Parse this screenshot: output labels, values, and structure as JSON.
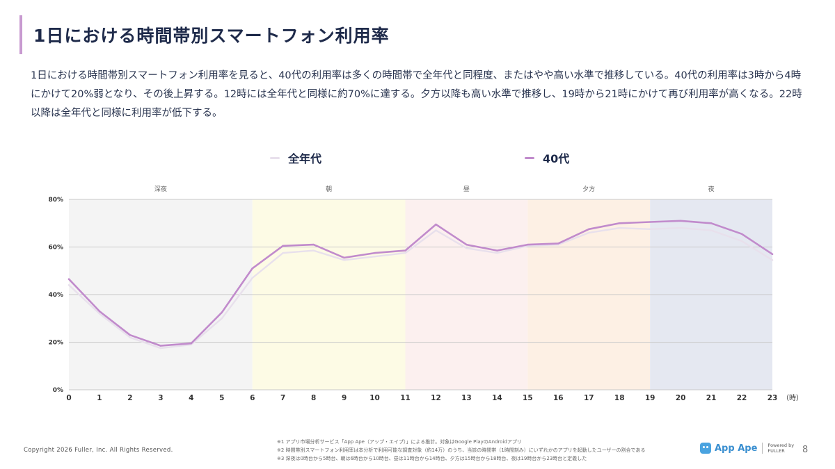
{
  "header": {
    "title": "1日における時間帯別スマートフォン利用率",
    "description": "1日における時間帯別スマートフォン利用率を見ると、40代の利用率は多くの時間帯で全年代と同程度、またはやや高い水準で推移している。40代の利用率は3時から4時にかけて20%弱となり、その後上昇する。12時には全年代と同様に約70%に達する。夕方以降も高い水準で推移し、19時から21時にかけて再び利用率が高くなる。22時以降は全年代と同様に利用率が低下する。"
  },
  "chart_data": {
    "type": "line",
    "x": [
      0,
      1,
      2,
      3,
      4,
      5,
      6,
      7,
      8,
      9,
      10,
      11,
      12,
      13,
      14,
      15,
      16,
      17,
      18,
      19,
      20,
      21,
      22,
      23
    ],
    "x_unit_label": "（時）",
    "ylim": [
      0,
      80
    ],
    "yticks": [
      "0%",
      "20%",
      "40%",
      "60%",
      "80%"
    ],
    "y_tick_values": [
      0,
      20,
      40,
      60,
      80
    ],
    "grid": true,
    "legend_position": "top-center",
    "series": [
      {
        "name": "全年代",
        "color": "#e8e0ec",
        "values": [
          44,
          32,
          22,
          17.5,
          19,
          30,
          47,
          57.5,
          58.5,
          54.5,
          56,
          57.5,
          67,
          59.5,
          57.5,
          60.5,
          61,
          66,
          68,
          67.5,
          68,
          67,
          62.5,
          54.5
        ]
      },
      {
        "name": "40代",
        "color": "#c18bcc",
        "values": [
          46.5,
          33,
          23,
          18.5,
          19.5,
          32.5,
          51,
          60.5,
          61,
          55.5,
          57.5,
          58.5,
          69.5,
          61,
          58.5,
          61,
          61.5,
          67.5,
          70,
          70.5,
          71,
          70,
          65.5,
          57
        ]
      }
    ],
    "bands": [
      {
        "label": "深夜",
        "from": 0,
        "to": 6,
        "color": "#f4f4f4"
      },
      {
        "label": "朝",
        "from": 6,
        "to": 11,
        "color": "#fdfbe5"
      },
      {
        "label": "昼",
        "from": 11,
        "to": 15,
        "color": "#fcf0ef"
      },
      {
        "label": "夕方",
        "from": 15,
        "to": 19,
        "color": "#fdf0e4"
      },
      {
        "label": "夜",
        "from": 19,
        "to": 23,
        "color": "#e5e8f1"
      }
    ]
  },
  "footer": {
    "copyright": "Copyright 2026 Fuller, Inc. All Rights Reserved.",
    "notes": [
      "※1 アプリ市場分析サービス「App Ape（アップ・エイプ）」による推計。対象はGoogle PlayのAndroidアプリ",
      "※2 時間帯別スマートフォン利用率は本分析で利用可能な調査対象（約14万）のうち、当該の時間帯（1時間刻み）にいずれかのアプリを起動したユーザーの割合である",
      "※3 深夜は0時台から5時台、朝は6時台から10時台、昼は11時台から14時台、夕方は15時台から18時台、夜は19時台から23時台と定義した"
    ],
    "logo_text": "App Ape",
    "logo_powered": "Powered by",
    "logo_company": "FULLER",
    "page_number": "8"
  }
}
